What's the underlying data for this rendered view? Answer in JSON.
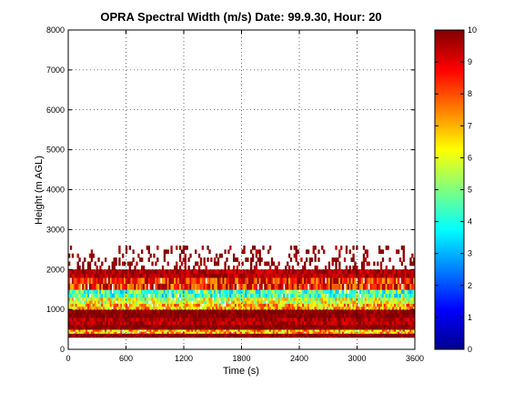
{
  "chart_data": {
    "type": "heatmap",
    "title": "OPRA Spectral Width (m/s)  Date: 99.9.30, Hour: 20",
    "xlabel": "Time (s)",
    "ylabel": "Height (m AGL)",
    "xlim": [
      0,
      3600
    ],
    "ylim": [
      0,
      8000
    ],
    "x_ticks": [
      0,
      600,
      1200,
      1800,
      2400,
      3000,
      3600
    ],
    "x_tick_labels": [
      "0",
      "600",
      "1200",
      "1800",
      "2400",
      "3000",
      "3600"
    ],
    "y_ticks": [
      0,
      1000,
      2000,
      3000,
      4000,
      5000,
      6000,
      7000,
      8000
    ],
    "y_tick_labels": [
      "0",
      "1000",
      "2000",
      "3000",
      "4000",
      "5000",
      "6000",
      "7000",
      "8000"
    ],
    "grid": true,
    "colormap": "jet",
    "colorbar": {
      "range": [
        0,
        10
      ],
      "ticks": [
        0,
        1,
        2,
        3,
        4,
        5,
        6,
        7,
        8,
        9,
        10
      ],
      "tick_labels": [
        "0",
        "1",
        "2",
        "3",
        "4",
        "5",
        "6",
        "7",
        "8",
        "9",
        "10"
      ]
    },
    "layers": [
      {
        "height_range": [
          300,
          400
        ],
        "value": 10
      },
      {
        "height_range": [
          400,
          500
        ],
        "value": 7
      },
      {
        "height_range": [
          500,
          620
        ],
        "value": 10
      },
      {
        "height_range": [
          620,
          800
        ],
        "value": 9.5
      },
      {
        "height_range": [
          800,
          1000
        ],
        "value": 10
      },
      {
        "height_range": [
          1000,
          1150
        ],
        "value": 7
      },
      {
        "height_range": [
          1150,
          1300
        ],
        "value": 6
      },
      {
        "height_range": [
          1300,
          1500
        ],
        "value": 4.5
      },
      {
        "height_range": [
          1500,
          1800
        ],
        "value": 8.5
      },
      {
        "height_range": [
          1800,
          2000
        ],
        "value": 9.5
      },
      {
        "height_range": [
          2000,
          2600
        ],
        "value": 10,
        "sparse": true
      }
    ]
  }
}
